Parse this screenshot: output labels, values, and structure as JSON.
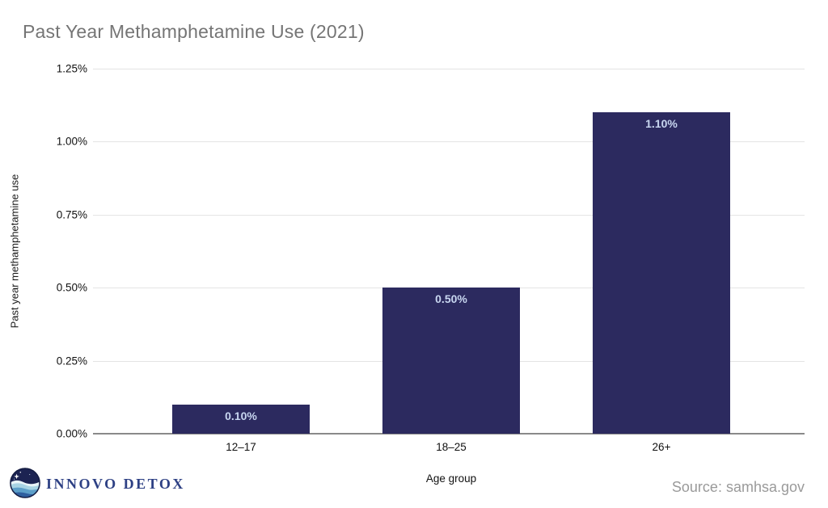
{
  "header": {
    "title": "Past Year Methamphetamine Use (2021)"
  },
  "footer": {
    "brand": "INNOVO DETOX",
    "source": "Source: samhsa.gov"
  },
  "colors": {
    "bar": "#2c2a5f",
    "bar_label": "#c8d6f0",
    "title_text": "#757575",
    "grid": "#e4e4e4",
    "axis_line": "#8a8a8a",
    "tick_text": "#111111",
    "source_text": "#9a9a9a",
    "logo_text": "#2d4084",
    "logo_sky": "#1c2352",
    "logo_wave_light": "#a8d4e4",
    "logo_wave_mid": "#5d9fc9",
    "logo_wave_deep": "#2f5e9e"
  },
  "chart_data": {
    "type": "bar",
    "title": "Past Year Methamphetamine Use (2021)",
    "categories": [
      "12–17",
      "18–25",
      "26+"
    ],
    "values": [
      0.1,
      0.5,
      1.1
    ],
    "bar_labels": [
      "0.10%",
      "0.50%",
      "1.10%"
    ],
    "xlabel": "Age group",
    "ylabel": "Past year methamphetamine use",
    "ylim": [
      0,
      1.25
    ],
    "ytick_values": [
      0,
      0.25,
      0.5,
      0.75,
      1.0,
      1.25
    ],
    "ytick_labels": [
      "0.00%",
      "0.25%",
      "0.50%",
      "0.75%",
      "1.00%",
      "1.25%"
    ],
    "grid": true,
    "legend": false,
    "source": "Source: samhsa.gov"
  }
}
